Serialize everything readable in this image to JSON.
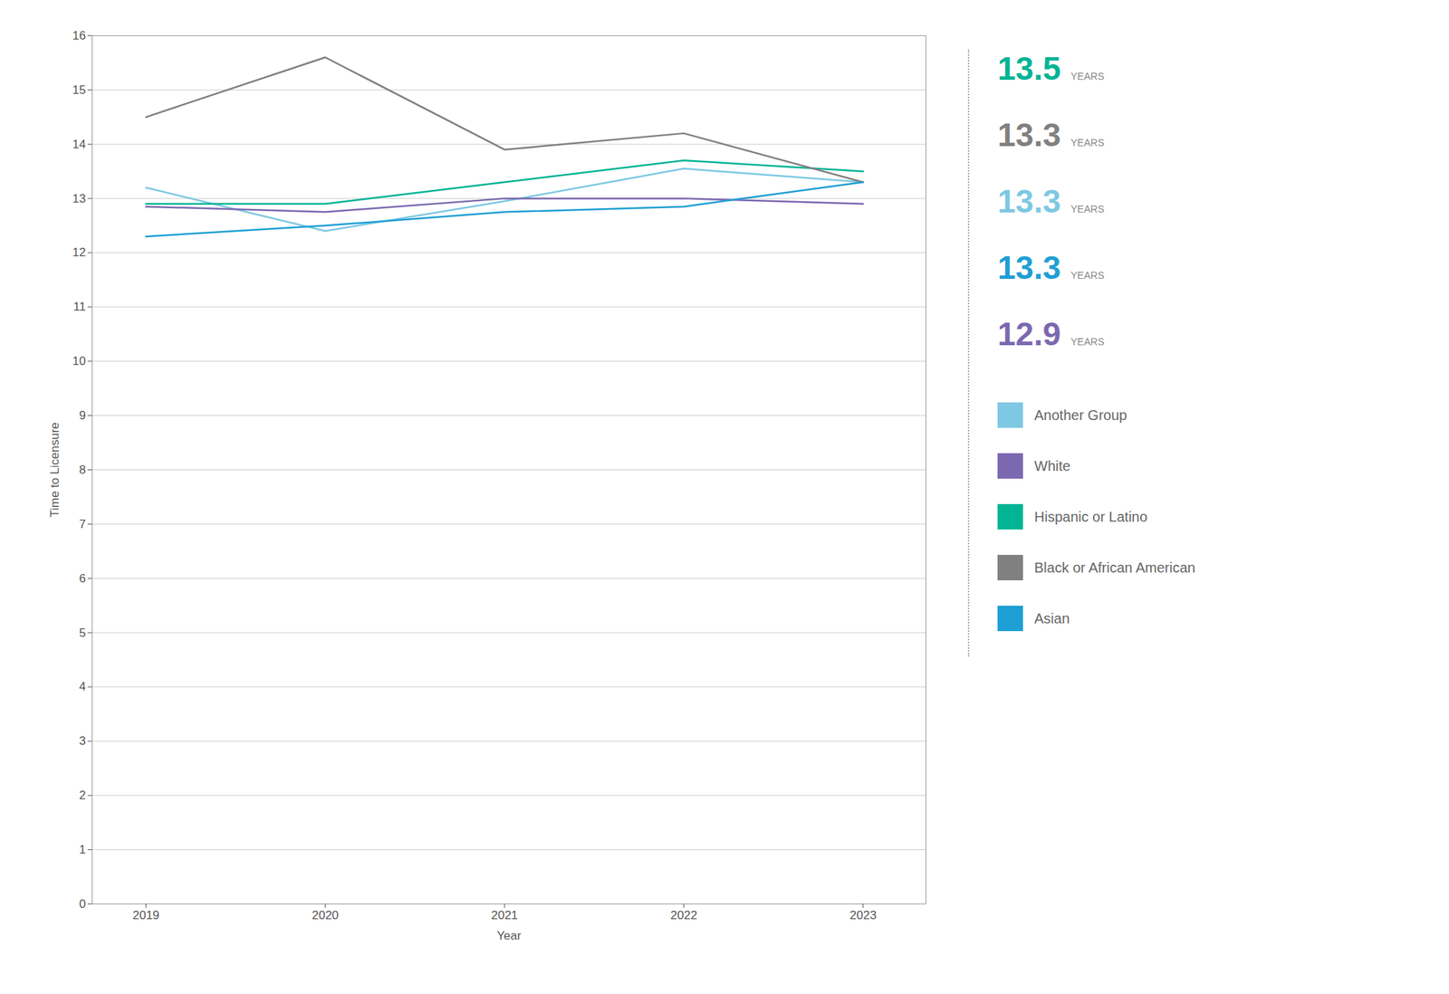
{
  "chart_data": {
    "type": "line",
    "xlabel": "Year",
    "ylabel": "Time to Licensure",
    "x": [
      2019,
      2020,
      2021,
      2022,
      2023
    ],
    "series": [
      {
        "name": "Another Group",
        "color": "#7EC8E3",
        "values": [
          13.2,
          12.4,
          12.95,
          13.55,
          13.3
        ]
      },
      {
        "name": "White",
        "color": "#7B68B0",
        "values": [
          12.85,
          12.75,
          13.0,
          13.0,
          12.9
        ]
      },
      {
        "name": "Hispanic or Latino",
        "color": "#00B494",
        "values": [
          12.9,
          12.9,
          13.3,
          13.7,
          13.5
        ]
      },
      {
        "name": "Black or African American",
        "color": "#808080",
        "values": [
          14.5,
          15.6,
          13.9,
          14.2,
          13.3
        ]
      },
      {
        "name": "Asian",
        "color": "#1E9FD4",
        "values": [
          12.3,
          12.5,
          12.75,
          12.85,
          13.3
        ]
      }
    ],
    "xlim": [
      2018.7,
      2023.35
    ],
    "xticks": [
      2019,
      2020,
      2021,
      2022,
      2023
    ],
    "ylim": [
      0,
      16
    ],
    "yticks": [
      0,
      1,
      2,
      3,
      4,
      5,
      6,
      7,
      8,
      9,
      10,
      11,
      12,
      13,
      14,
      15,
      16
    ],
    "grid": true,
    "legend": "right",
    "annotations": [
      {
        "text": "13.5",
        "unit": "YEARS",
        "color": "#00B494"
      },
      {
        "text": "13.3",
        "unit": "YEARS",
        "color": "#808080"
      },
      {
        "text": "13.3",
        "unit": "YEARS",
        "color": "#7EC8E3"
      },
      {
        "text": "13.3",
        "unit": "YEARS",
        "color": "#1E9FD4"
      },
      {
        "text": "12.9",
        "unit": "YEARS",
        "color": "#7B68B0"
      }
    ]
  }
}
